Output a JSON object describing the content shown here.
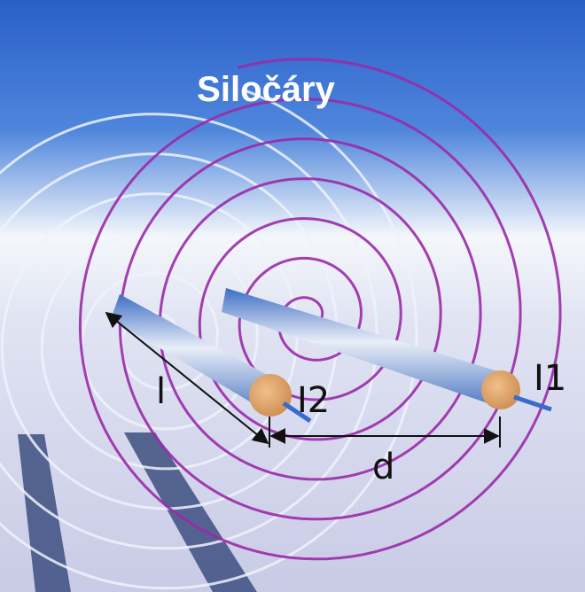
{
  "title": "Siločáry",
  "labels": {
    "length": "l",
    "current2": "I2",
    "distance": "d",
    "current1": "I1"
  }
}
